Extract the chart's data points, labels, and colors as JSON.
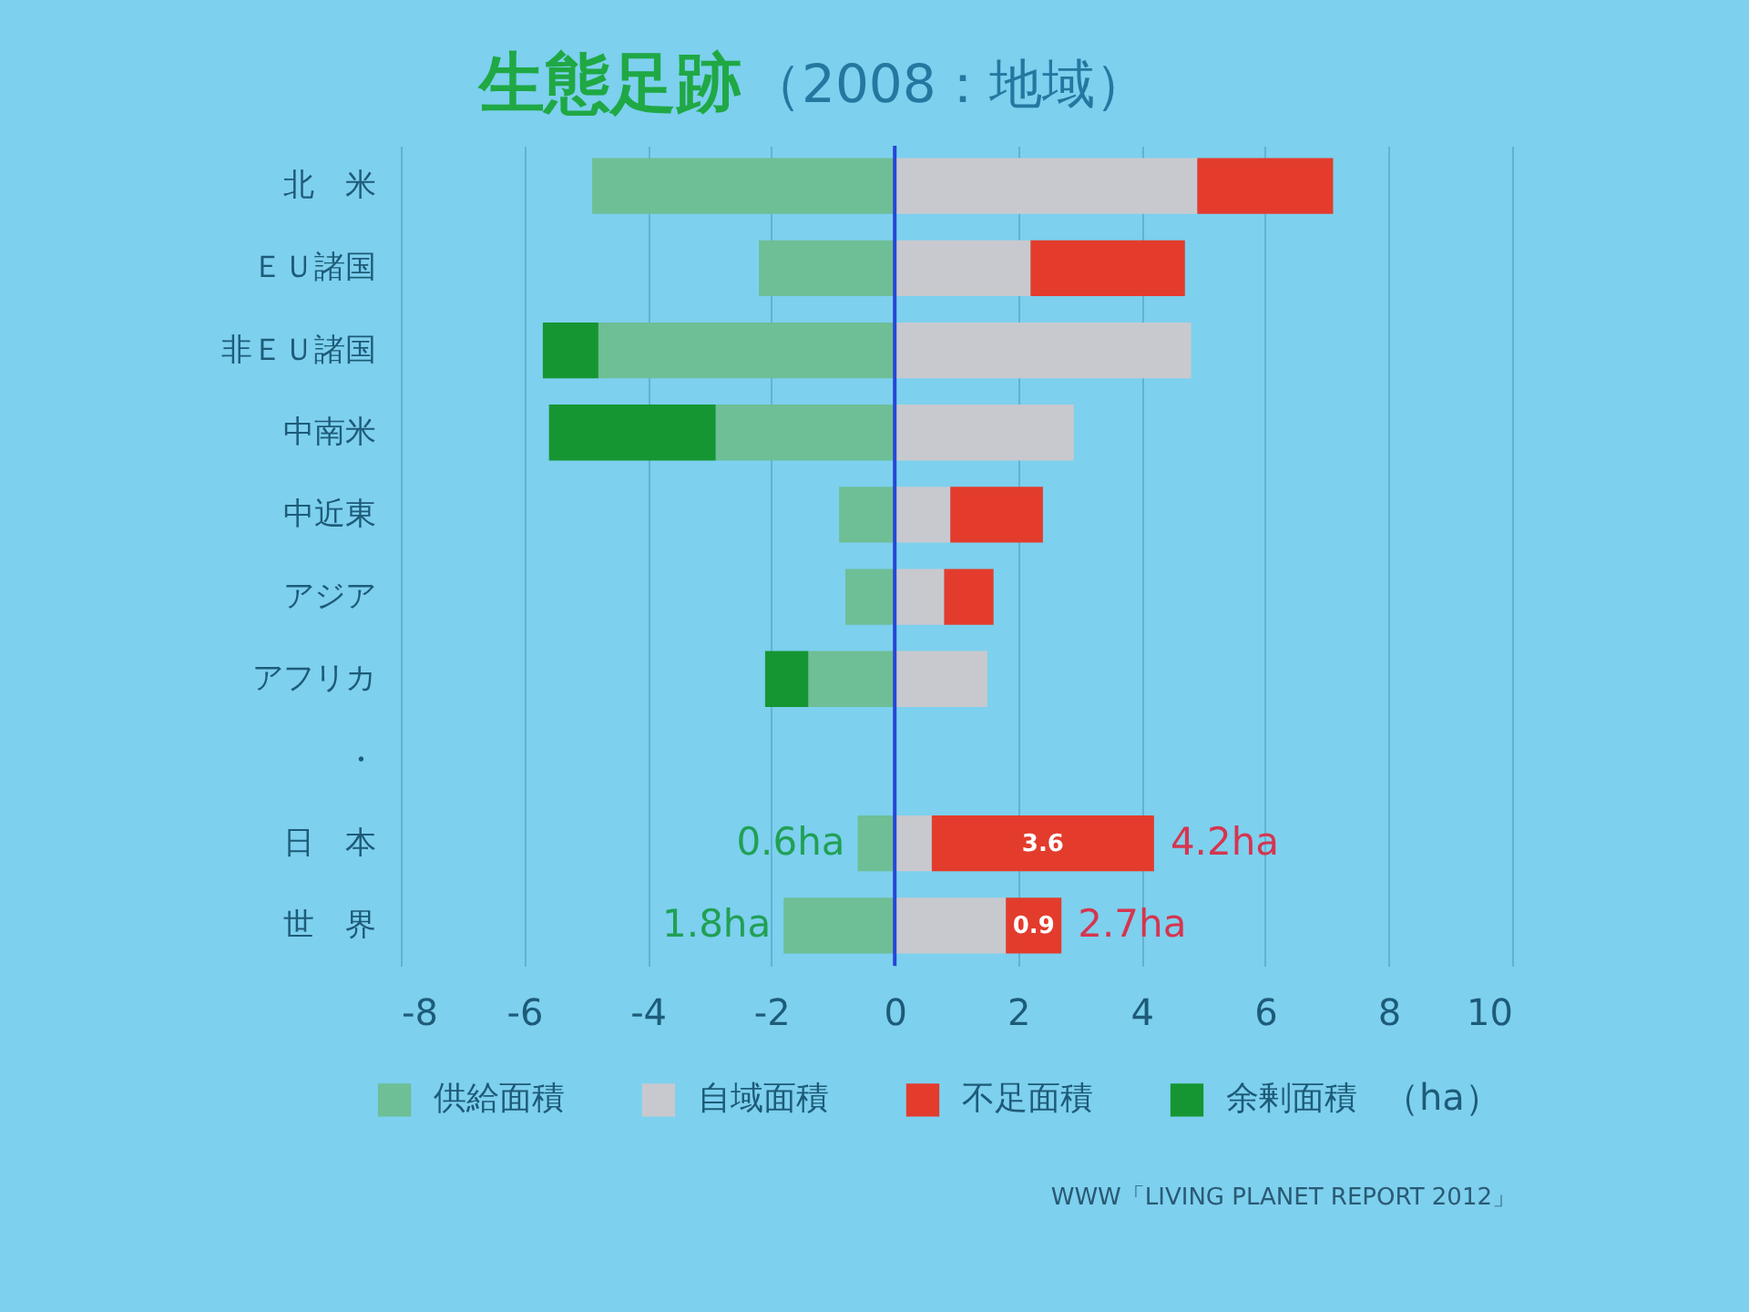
{
  "chart_data": {
    "type": "bar",
    "orientation": "horizontal",
    "stacked": true,
    "title": "生態足跡",
    "subtitle": "（2008：地域）",
    "categories": [
      "北　米",
      "ＥＵ諸国",
      "非ＥＵ諸国",
      "中南米",
      "中近東",
      "アジア",
      "アフリカ",
      "・",
      "日　本",
      "世　界"
    ],
    "series": [
      {
        "name": "供給面積",
        "color": "#6ebe96",
        "values": [
          -4.9,
          -2.2,
          -4.8,
          -2.9,
          -0.9,
          -0.8,
          -1.4,
          null,
          -0.6,
          -1.8
        ]
      },
      {
        "name": "自域面積",
        "color": "#c8c9ce",
        "values": [
          4.9,
          2.2,
          4.8,
          2.9,
          0.9,
          0.8,
          1.5,
          null,
          0.6,
          1.8
        ]
      },
      {
        "name": "不足面積",
        "color": "#e33c2d",
        "values": [
          2.2,
          2.5,
          null,
          null,
          1.5,
          0.8,
          null,
          null,
          3.6,
          0.9
        ],
        "value_labels": [
          null,
          null,
          null,
          null,
          null,
          null,
          null,
          null,
          "3.6",
          "0.9"
        ]
      },
      {
        "name": "余剰面積",
        "color": "#169632",
        "values": [
          null,
          null,
          -0.9,
          -2.7,
          null,
          null,
          -0.7,
          null,
          null,
          null
        ]
      }
    ],
    "xlim": [
      -8,
      10
    ],
    "xticks": [
      -8,
      -6,
      -4,
      -2,
      0,
      2,
      4,
      6,
      8,
      10
    ],
    "grid": "x",
    "legend": "bottom",
    "legend_title": "（ha）",
    "ref_lines": [
      {
        "axis": "x",
        "value": 0,
        "color": "#2546d6"
      }
    ],
    "annotations": [
      {
        "text": "0.6ha",
        "x": -0.6,
        "y": "日　本"
      },
      {
        "text": "4.2ha",
        "x": 4.2,
        "y": "日　本"
      },
      {
        "text": "1.8ha",
        "x": -1.8,
        "y": "世　界"
      },
      {
        "text": "2.7ha",
        "x": 2.7,
        "y": "世　界"
      },
      "WWW「LIVING PLANET REPORT 2012」"
    ]
  }
}
